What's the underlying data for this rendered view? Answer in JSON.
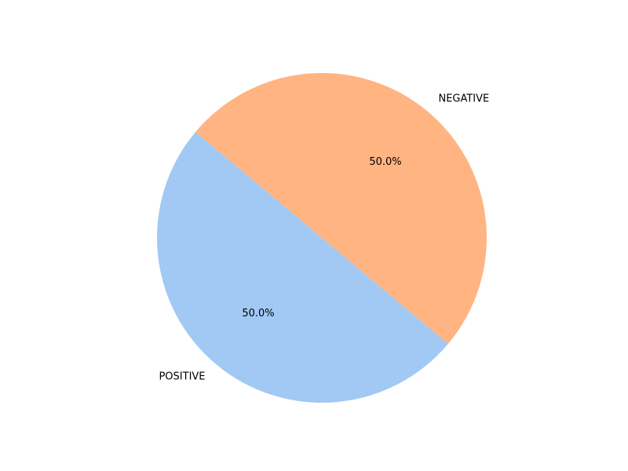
{
  "chart_data": {
    "type": "pie",
    "title": "",
    "slices": [
      {
        "label": "POSITIVE",
        "value": 50.0,
        "pct_label": "50.0%",
        "color": "#a1c9f4"
      },
      {
        "label": "NEGATIVE",
        "value": 50.0,
        "pct_label": "50.0%",
        "color": "#ffb482"
      }
    ],
    "start_angle_deg": 140,
    "direction": "counterclockwise",
    "legend": "none"
  }
}
